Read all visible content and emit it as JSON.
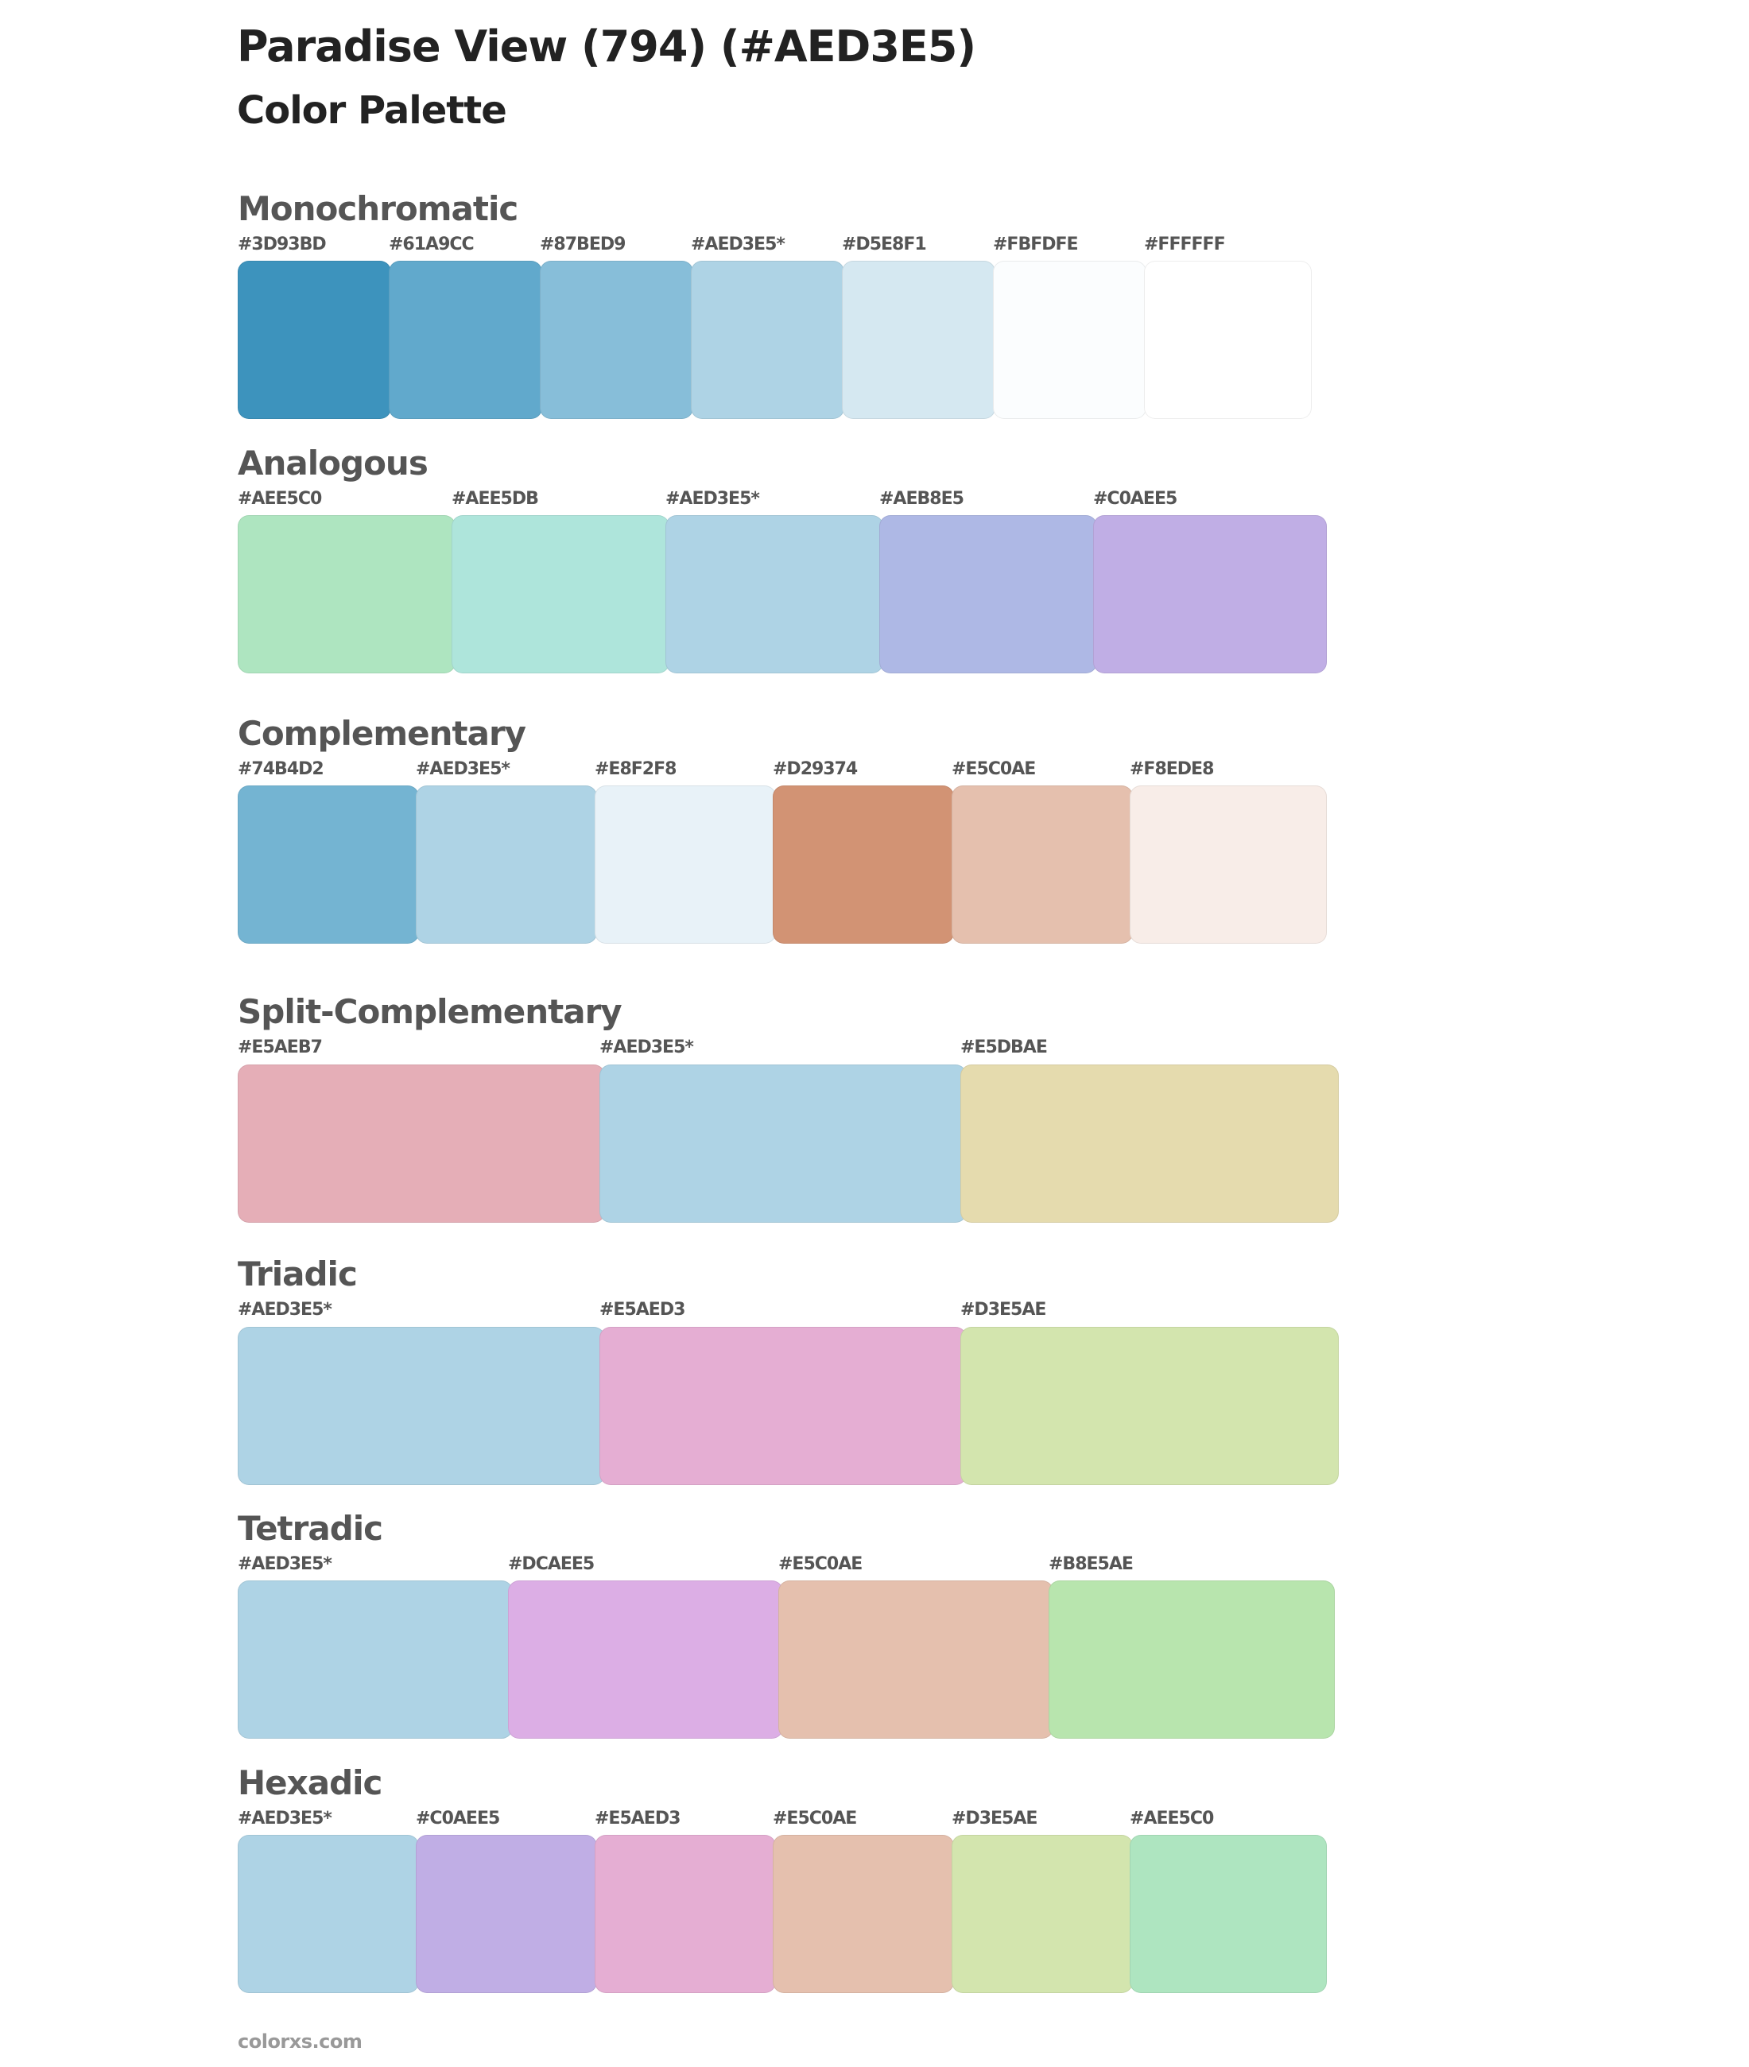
{
  "header": {
    "title": "Paradise View (794) (#AED3E5)",
    "subtitle": "Color Palette"
  },
  "base_color": "#AED3E5",
  "palettes": [
    {
      "name": "Monochromatic",
      "colors": [
        {
          "label": "#3D93BD",
          "hex": "#3D93BD"
        },
        {
          "label": "#61A9CC",
          "hex": "#61A9CC"
        },
        {
          "label": "#87BED9",
          "hex": "#87BED9"
        },
        {
          "label": "#AED3E5*",
          "hex": "#AED3E5"
        },
        {
          "label": "#D5E8F1",
          "hex": "#D5E8F1"
        },
        {
          "label": "#FBFDFE",
          "hex": "#FBFDFE"
        },
        {
          "label": "#FFFFFF",
          "hex": "#FFFFFF"
        }
      ]
    },
    {
      "name": "Analogous",
      "colors": [
        {
          "label": "#AEE5C0",
          "hex": "#AEE5C0"
        },
        {
          "label": "#AEE5DB",
          "hex": "#AEE5DB"
        },
        {
          "label": "#AED3E5*",
          "hex": "#AED3E5"
        },
        {
          "label": "#AEB8E5",
          "hex": "#AEB8E5"
        },
        {
          "label": "#C0AEE5",
          "hex": "#C0AEE5"
        }
      ]
    },
    {
      "name": "Complementary",
      "colors": [
        {
          "label": "#74B4D2",
          "hex": "#74B4D2"
        },
        {
          "label": "#AED3E5*",
          "hex": "#AED3E5"
        },
        {
          "label": "#E8F2F8",
          "hex": "#E8F2F8"
        },
        {
          "label": "#D29374",
          "hex": "#D29374"
        },
        {
          "label": "#E5C0AE",
          "hex": "#E5C0AE"
        },
        {
          "label": "#F8EDE8",
          "hex": "#F8EDE8"
        }
      ]
    },
    {
      "name": "Split-Complementary",
      "colors": [
        {
          "label": "#E5AEB7",
          "hex": "#E5AEB7"
        },
        {
          "label": "#AED3E5*",
          "hex": "#AED3E5"
        },
        {
          "label": "#E5DBAE",
          "hex": "#E5DBAE"
        }
      ]
    },
    {
      "name": "Triadic",
      "colors": [
        {
          "label": "#AED3E5*",
          "hex": "#AED3E5"
        },
        {
          "label": "#E5AED3",
          "hex": "#E5AED3"
        },
        {
          "label": "#D3E5AE",
          "hex": "#D3E5AE"
        }
      ]
    },
    {
      "name": "Tetradic",
      "colors": [
        {
          "label": "#AED3E5*",
          "hex": "#AED3E5"
        },
        {
          "label": "#DCAEE5",
          "hex": "#DCAEE5"
        },
        {
          "label": "#E5C0AE",
          "hex": "#E5C0AE"
        },
        {
          "label": "#B8E5AE",
          "hex": "#B8E5AE"
        }
      ]
    },
    {
      "name": "Hexadic",
      "colors": [
        {
          "label": "#AED3E5*",
          "hex": "#AED3E5"
        },
        {
          "label": "#C0AEE5",
          "hex": "#C0AEE5"
        },
        {
          "label": "#E5AED3",
          "hex": "#E5AED3"
        },
        {
          "label": "#E5C0AE",
          "hex": "#E5C0AE"
        },
        {
          "label": "#D3E5AE",
          "hex": "#D3E5AE"
        },
        {
          "label": "#AEE5C0",
          "hex": "#AEE5C0"
        }
      ]
    }
  ],
  "footer": {
    "text": "colorxs.com"
  }
}
